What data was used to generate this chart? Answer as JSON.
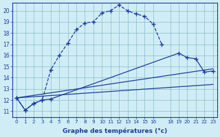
{
  "xlabel": "Graphe des températures (°c)",
  "background_color": "#d0edf5",
  "line_color": "#1a3a9e",
  "grid_color": "#88bbc8",
  "xlim": [
    -0.5,
    23.5
  ],
  "ylim": [
    10.5,
    20.7
  ],
  "yticks": [
    11,
    12,
    13,
    14,
    15,
    16,
    17,
    18,
    19,
    20
  ],
  "xticks": [
    0,
    1,
    2,
    3,
    4,
    5,
    6,
    7,
    8,
    9,
    10,
    11,
    12,
    13,
    14,
    15,
    16,
    18,
    19,
    20,
    21,
    22,
    23
  ],
  "curve1_x": [
    0,
    1,
    2,
    3,
    4,
    5,
    6,
    7,
    8,
    9,
    10,
    11,
    12,
    13,
    14,
    15,
    16,
    17
  ],
  "curve1_y": [
    12.2,
    11.1,
    11.7,
    12.0,
    14.7,
    16.0,
    17.1,
    18.3,
    18.9,
    19.0,
    19.8,
    20.0,
    20.5,
    20.0,
    19.7,
    19.5,
    18.8,
    17.0
  ],
  "curve2_x": [
    0,
    1,
    2,
    3,
    4,
    19,
    20,
    21,
    22,
    23
  ],
  "curve2_y": [
    12.2,
    11.1,
    11.7,
    12.0,
    12.1,
    16.2,
    15.8,
    15.7,
    14.5,
    14.6
  ],
  "curve3_x": [
    0,
    23
  ],
  "curve3_y": [
    12.2,
    14.8
  ],
  "curve4_x": [
    0,
    23
  ],
  "curve4_y": [
    12.2,
    13.4
  ]
}
